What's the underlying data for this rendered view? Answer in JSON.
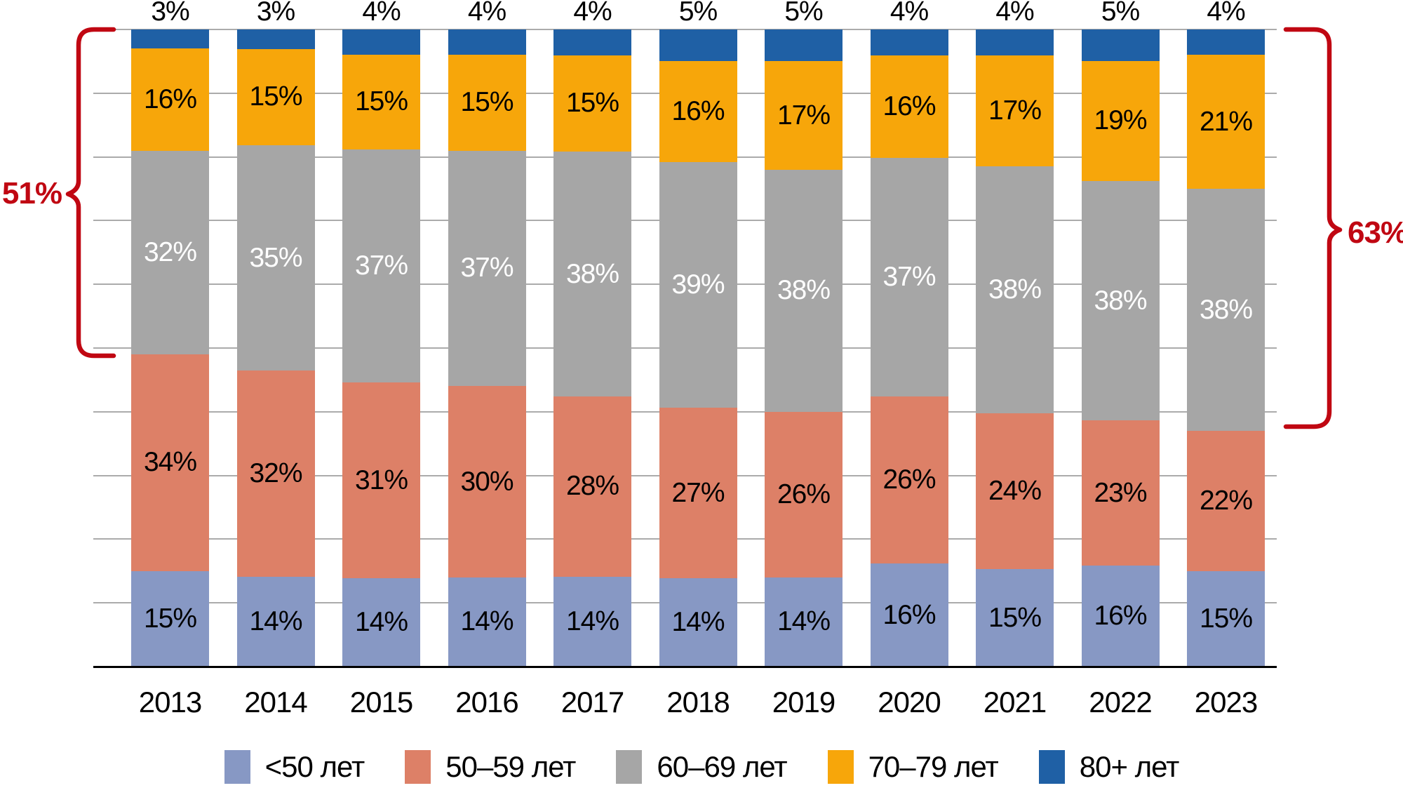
{
  "chart_data": {
    "type": "bar",
    "stacked": true,
    "unit": "%",
    "categories": [
      "2013",
      "2014",
      "2015",
      "2016",
      "2017",
      "2018",
      "2019",
      "2020",
      "2021",
      "2022",
      "2023"
    ],
    "series": [
      {
        "name": "<50 лет",
        "color": "#8798C4",
        "label_color": "#000000",
        "label_position": "inside",
        "values": [
          15,
          14,
          14,
          14,
          14,
          14,
          14,
          16,
          15,
          16,
          15
        ]
      },
      {
        "name": "50–59 лет",
        "color": "#DD8067",
        "label_color": "#000000",
        "label_position": "inside",
        "values": [
          34,
          32,
          31,
          30,
          28,
          27,
          26,
          26,
          24,
          23,
          22
        ]
      },
      {
        "name": "60–69 лет",
        "color": "#A6A6A6",
        "label_color": "#FFFFFF",
        "label_position": "inside",
        "values": [
          32,
          35,
          37,
          37,
          38,
          39,
          38,
          37,
          38,
          38,
          38
        ]
      },
      {
        "name": "70–79 лет",
        "color": "#F7A60A",
        "label_color": "#000000",
        "label_position": "inside",
        "values": [
          16,
          15,
          15,
          15,
          15,
          16,
          17,
          16,
          17,
          19,
          21
        ]
      },
      {
        "name": "80+ лет",
        "color": "#1F60A5",
        "label_color": "#000000",
        "label_position": "above",
        "values": [
          3,
          3,
          4,
          4,
          4,
          5,
          5,
          4,
          4,
          5,
          4
        ]
      }
    ],
    "ylim": [
      0,
      100
    ],
    "gridline_step": 10,
    "grid": true,
    "legend_position": "bottom",
    "annotations": [
      {
        "text": "51%",
        "side": "left",
        "category": "2013",
        "from_value": 49,
        "to_value": 100,
        "color": "#C00712"
      },
      {
        "text": "63%",
        "side": "right",
        "category": "2023",
        "from_value": 37,
        "to_value": 100,
        "color": "#C00712"
      }
    ]
  }
}
